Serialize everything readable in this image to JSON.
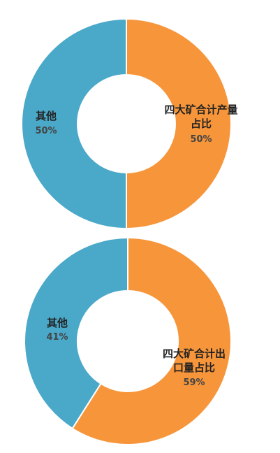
{
  "chart_data": [
    {
      "type": "pie",
      "categories": [
        "四大矿合计产量占比",
        "其他"
      ],
      "values": [
        50,
        50
      ],
      "value_labels": [
        "50%",
        "50%"
      ],
      "colors": [
        "#f7953a",
        "#4aa8c9"
      ]
    },
    {
      "type": "pie",
      "categories": [
        "四大矿合计出口量占比",
        "其他"
      ],
      "values": [
        59,
        41
      ],
      "value_labels": [
        "59%",
        "41%"
      ],
      "colors": [
        "#f7953a",
        "#4aa8c9"
      ]
    }
  ]
}
